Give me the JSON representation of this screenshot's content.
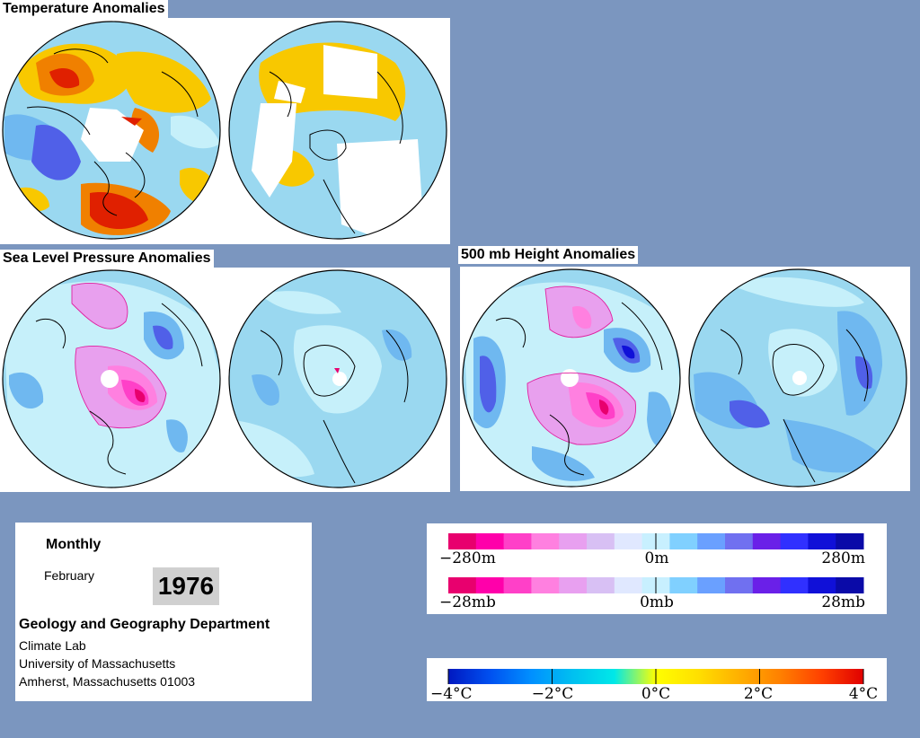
{
  "titles": {
    "temperature": "Temperature Anomalies",
    "slp": "Sea Level Pressure Anomalies",
    "height500": "500 mb Height Anomalies"
  },
  "info": {
    "period_type": "Monthly",
    "month": "February",
    "year": "1976",
    "department": "Geology and Geography Department",
    "lab": "Climate Lab",
    "university": "University of Massachusetts",
    "address": "Amherst, Massachusetts 01003"
  },
  "legends": {
    "height": {
      "labels": [
        "−280m",
        "0m",
        "280m"
      ],
      "colors": [
        "#e8006e",
        "#ff00aa",
        "#ff40c8",
        "#ff80e0",
        "#e8a0f0",
        "#d8c0f4",
        "#e0e8ff",
        "#c8f0ff",
        "#80d0ff",
        "#6aa0ff",
        "#7070f0",
        "#6a20e8",
        "#3030ff",
        "#1010d8",
        "#0a0aa8"
      ]
    },
    "pressure": {
      "labels": [
        "−28mb",
        "0mb",
        "28mb"
      ],
      "colors": [
        "#e8006e",
        "#ff00aa",
        "#ff40c8",
        "#ff80e0",
        "#e8a0f0",
        "#d8c0f4",
        "#e0e8ff",
        "#c8f0ff",
        "#80d0ff",
        "#6aa0ff",
        "#7070f0",
        "#6a20e8",
        "#3030ff",
        "#1010d8",
        "#0a0aa8"
      ]
    },
    "temperature": {
      "labels": [
        "−4°C",
        "−2°C",
        "0°C",
        "2°C",
        "4°C"
      ],
      "colors": [
        "#0018c0",
        "#0050f0",
        "#0090ff",
        "#00c0f0",
        "#00e8e8",
        "#ffff00",
        "#ffe000",
        "#ffb000",
        "#ff8000",
        "#ff4000",
        "#e00000"
      ]
    }
  },
  "map_colors": {
    "ocean_blue": "#9ad8f0",
    "light_blue": "#c6f0fa",
    "mid_blue": "#6fb8f0",
    "dark_blue": "#5060e8",
    "pink": "#e8a0ee",
    "magenta": "#ff40c8",
    "yellow": "#f8c800",
    "orange": "#f08000",
    "red": "#e02000"
  }
}
